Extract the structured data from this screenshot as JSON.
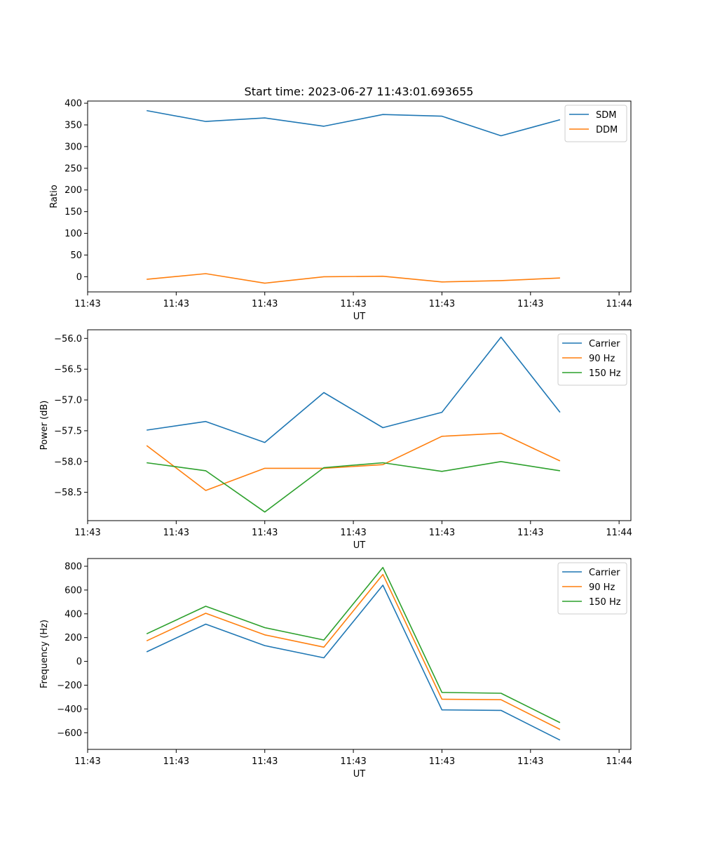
{
  "title": "Start time: 2023-06-27 11:43:01.693655",
  "colors": {
    "blue": "#1f77b4",
    "orange": "#ff7f0e",
    "green": "#2ca02c"
  },
  "chart_data": [
    {
      "type": "line",
      "title": "Start time: 2023-06-27 11:43:01.693655",
      "xlabel": "UT",
      "ylabel": "Ratio",
      "x": [
        1,
        2,
        3,
        4,
        5,
        6,
        7,
        8
      ],
      "xlim": [
        0,
        9.2
      ],
      "xticks": [
        0,
        1.5,
        3,
        4.5,
        6,
        7.5,
        9
      ],
      "xtick_labels": [
        "11:43",
        "11:43",
        "11:43",
        "11:43",
        "11:43",
        "11:43",
        "11:44"
      ],
      "ylim": [
        -35,
        405
      ],
      "yticks": [
        0,
        50,
        100,
        150,
        200,
        250,
        300,
        350,
        400
      ],
      "ytick_labels": [
        "0",
        "50",
        "100",
        "150",
        "200",
        "250",
        "300",
        "350",
        "400"
      ],
      "legend": "top-right",
      "grid": false,
      "series": [
        {
          "name": "SDM",
          "color": "blue",
          "values": [
            383,
            358,
            366,
            347,
            374,
            370,
            325,
            362
          ]
        },
        {
          "name": "DDM",
          "color": "orange",
          "values": [
            -6,
            7,
            -15,
            0,
            1,
            -12,
            -9,
            -3
          ]
        }
      ]
    },
    {
      "type": "line",
      "xlabel": "UT",
      "ylabel": "Power (dB)",
      "x": [
        1,
        2,
        3,
        4,
        5,
        6,
        7,
        8
      ],
      "xlim": [
        0,
        9.2
      ],
      "xticks": [
        0,
        1.5,
        3,
        4.5,
        6,
        7.5,
        9
      ],
      "xtick_labels": [
        "11:43",
        "11:43",
        "11:43",
        "11:43",
        "11:43",
        "11:43",
        "11:44"
      ],
      "ylim": [
        -58.96,
        -55.86
      ],
      "yticks": [
        -58.5,
        -58.0,
        -57.5,
        -57.0,
        -56.5,
        -56.0
      ],
      "ytick_labels": [
        "−58.5",
        "−58.0",
        "−57.5",
        "−57.0",
        "−56.5",
        "−56.0"
      ],
      "legend": "top-right",
      "grid": false,
      "series": [
        {
          "name": "Carrier",
          "color": "blue",
          "values": [
            -57.49,
            -57.35,
            -57.69,
            -56.88,
            -57.45,
            -57.2,
            -55.98,
            -57.2
          ]
        },
        {
          "name": "90 Hz",
          "color": "orange",
          "values": [
            -57.74,
            -58.47,
            -58.11,
            -58.11,
            -58.05,
            -57.59,
            -57.54,
            -57.99
          ]
        },
        {
          "name": "150 Hz",
          "color": "green",
          "values": [
            -58.02,
            -58.15,
            -58.82,
            -58.1,
            -58.02,
            -58.16,
            -58.0,
            -58.15
          ]
        }
      ]
    },
    {
      "type": "line",
      "xlabel": "UT",
      "ylabel": "Frequency (Hz)",
      "x": [
        1,
        2,
        3,
        4,
        5,
        6,
        7,
        8
      ],
      "xlim": [
        0,
        9.2
      ],
      "xticks": [
        0,
        1.5,
        3,
        4.5,
        6,
        7.5,
        9
      ],
      "xtick_labels": [
        "11:43",
        "11:43",
        "11:43",
        "11:43",
        "11:43",
        "11:43",
        "11:44"
      ],
      "ylim": [
        -740,
        865
      ],
      "yticks": [
        -600,
        -400,
        -200,
        0,
        200,
        400,
        600,
        800
      ],
      "ytick_labels": [
        "−600",
        "−400",
        "−200",
        "0",
        "200",
        "400",
        "600",
        "800"
      ],
      "legend": "top-right",
      "grid": false,
      "series": [
        {
          "name": "Carrier",
          "color": "blue",
          "values": [
            80,
            313,
            133,
            30,
            641,
            -408,
            -412,
            -662
          ]
        },
        {
          "name": "90 Hz",
          "color": "orange",
          "values": [
            173,
            405,
            223,
            120,
            731,
            -318,
            -322,
            -572
          ]
        },
        {
          "name": "150 Hz",
          "color": "green",
          "values": [
            232,
            464,
            284,
            180,
            790,
            -261,
            -268,
            -515
          ]
        }
      ]
    }
  ]
}
